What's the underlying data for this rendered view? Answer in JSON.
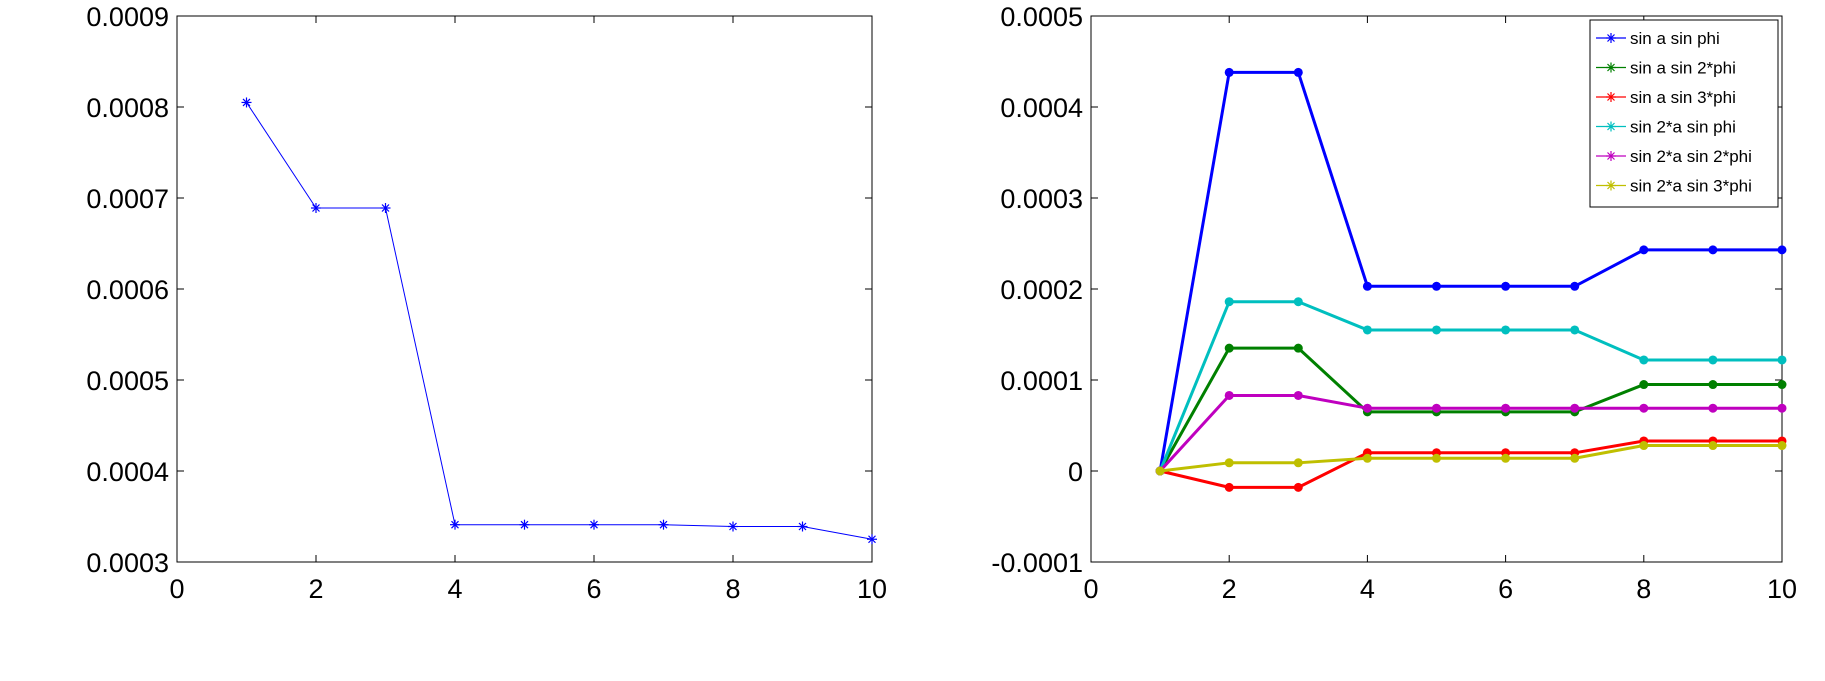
{
  "chart_data": [
    {
      "type": "line",
      "title": "",
      "xlabel": "",
      "ylabel": "",
      "xlim": [
        0,
        10
      ],
      "ylim": [
        0.0003,
        0.0009
      ],
      "xticks": [
        0,
        2,
        4,
        6,
        8,
        10
      ],
      "xtick_labels": [
        "0",
        "2",
        "4",
        "6",
        "8",
        "10"
      ],
      "yticks": [
        0.0003,
        0.0004,
        0.0005,
        0.0006,
        0.0007,
        0.0008,
        0.0009
      ],
      "ytick_labels": [
        "0.0003",
        "0.0004",
        "0.0005",
        "0.0006",
        "0.0007",
        "0.0008",
        "0.0009"
      ],
      "grid": false,
      "series": [
        {
          "color": "#0000ff",
          "marker": "asterisk",
          "x": [
            1,
            2,
            3,
            4,
            5,
            6,
            7,
            8,
            9,
            10
          ],
          "y": [
            0.000805,
            0.000689,
            0.000689,
            0.000341,
            0.000341,
            0.000341,
            0.000341,
            0.000339,
            0.000339,
            0.000325
          ]
        }
      ]
    },
    {
      "type": "line",
      "title": "",
      "xlabel": "",
      "ylabel": "",
      "xlim": [
        0,
        10
      ],
      "ylim": [
        -0.0001,
        0.0005
      ],
      "xticks": [
        0,
        2,
        4,
        6,
        8,
        10
      ],
      "xtick_labels": [
        "0",
        "2",
        "4",
        "6",
        "8",
        "10"
      ],
      "yticks": [
        -0.0001,
        0,
        0.0001,
        0.0002,
        0.0003,
        0.0004,
        0.0005
      ],
      "ytick_labels": [
        "-0.0001",
        "0",
        "0.0001",
        "0.0002",
        "0.0003",
        "0.0004",
        "0.0005"
      ],
      "grid": false,
      "legend_position": "top-right",
      "series": [
        {
          "name": "sin a sin phi",
          "color": "#0000ff",
          "x": [
            1,
            2,
            3,
            4,
            5,
            6,
            7,
            8,
            9,
            10
          ],
          "y": [
            0,
            0.000438,
            0.000438,
            0.000203,
            0.000203,
            0.000203,
            0.000203,
            0.000243,
            0.000243,
            0.000243
          ]
        },
        {
          "name": "sin a sin 2*phi",
          "color": "#008000",
          "x": [
            1,
            2,
            3,
            4,
            5,
            6,
            7,
            8,
            9,
            10
          ],
          "y": [
            0,
            0.000135,
            0.000135,
            6.5e-05,
            6.5e-05,
            6.5e-05,
            6.5e-05,
            9.5e-05,
            9.5e-05,
            9.5e-05
          ]
        },
        {
          "name": "sin a sin 3*phi",
          "color": "#ff0000",
          "x": [
            1,
            2,
            3,
            4,
            5,
            6,
            7,
            8,
            9,
            10
          ],
          "y": [
            0,
            -1.8e-05,
            -1.8e-05,
            2e-05,
            2e-05,
            2e-05,
            2e-05,
            3.3e-05,
            3.3e-05,
            3.3e-05
          ]
        },
        {
          "name": "sin 2*a sin phi",
          "color": "#00bfbf",
          "x": [
            1,
            2,
            3,
            4,
            5,
            6,
            7,
            8,
            9,
            10
          ],
          "y": [
            0,
            0.000186,
            0.000186,
            0.000155,
            0.000155,
            0.000155,
            0.000155,
            0.000122,
            0.000122,
            0.000122
          ]
        },
        {
          "name": "sin 2*a sin 2*phi",
          "color": "#bf00bf",
          "x": [
            1,
            2,
            3,
            4,
            5,
            6,
            7,
            8,
            9,
            10
          ],
          "y": [
            0,
            8.3e-05,
            8.3e-05,
            6.9e-05,
            6.9e-05,
            6.9e-05,
            6.9e-05,
            6.9e-05,
            6.9e-05,
            6.9e-05
          ]
        },
        {
          "name": "sin 2*a sin 3*phi",
          "color": "#bfbf00",
          "x": [
            1,
            2,
            3,
            4,
            5,
            6,
            7,
            8,
            9,
            10
          ],
          "y": [
            0,
            9e-06,
            9e-06,
            1.4e-05,
            1.4e-05,
            1.4e-05,
            1.4e-05,
            2.8e-05,
            2.8e-05,
            2.8e-05
          ]
        }
      ]
    }
  ]
}
